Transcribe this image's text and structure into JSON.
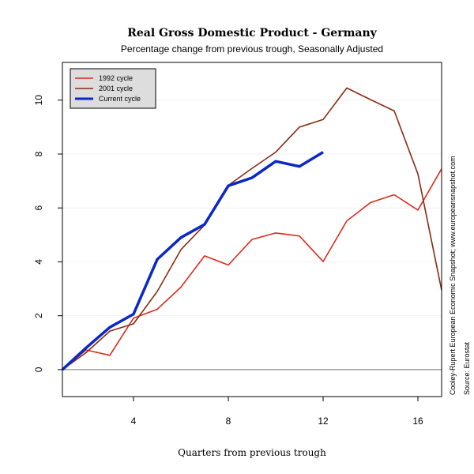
{
  "chart_data": {
    "type": "line",
    "title": "Real Gross Domestic Product - Germany",
    "subtitle": "Percentage change from previous trough, Seasonally Adjusted",
    "xlabel": "Quarters from previous trough",
    "ylabel": "",
    "xlim": [
      1,
      17
    ],
    "ylim": [
      -1,
      11.4
    ],
    "x_ticks": [
      4,
      8,
      12,
      16
    ],
    "y_ticks": [
      0,
      2,
      4,
      6,
      8,
      10
    ],
    "grid": true,
    "reference_line": 0,
    "legend_position": "top-left",
    "series": [
      {
        "name": "1992 cycle",
        "color": "#dd2a1c",
        "x": [
          1,
          2,
          3,
          4,
          5,
          6,
          7,
          8,
          9,
          10,
          11,
          12,
          13,
          14,
          15,
          16,
          17
        ],
        "values": [
          0,
          0.73,
          0.53,
          1.91,
          2.24,
          3.06,
          4.22,
          3.88,
          4.83,
          5.07,
          4.96,
          4.01,
          5.52,
          6.2,
          6.49,
          5.92,
          7.45
        ]
      },
      {
        "name": "2001 cycle",
        "color": "#8b2a10",
        "x": [
          1,
          2,
          3,
          4,
          5,
          6,
          7,
          8,
          9,
          10,
          11,
          12,
          13,
          14,
          15,
          16,
          17
        ],
        "values": [
          0,
          0.63,
          1.43,
          1.7,
          2.9,
          4.45,
          5.37,
          6.84,
          7.47,
          8.07,
          9.0,
          9.28,
          10.45,
          10.02,
          9.6,
          7.26,
          2.95
        ]
      },
      {
        "name": "Current cycle",
        "color": "#0a28c8",
        "x": [
          1,
          2,
          3,
          4,
          5,
          6,
          7,
          8,
          9,
          10,
          11,
          12
        ],
        "values": [
          0,
          0.81,
          1.57,
          2.06,
          4.09,
          4.9,
          5.39,
          6.82,
          7.12,
          7.73,
          7.54,
          8.07
        ]
      }
    ]
  },
  "side_notes": {
    "credit": "Cooley-Rupert European Economic Snapshot; www.europeansnapshot.com",
    "source": "Source: Eurostat"
  }
}
